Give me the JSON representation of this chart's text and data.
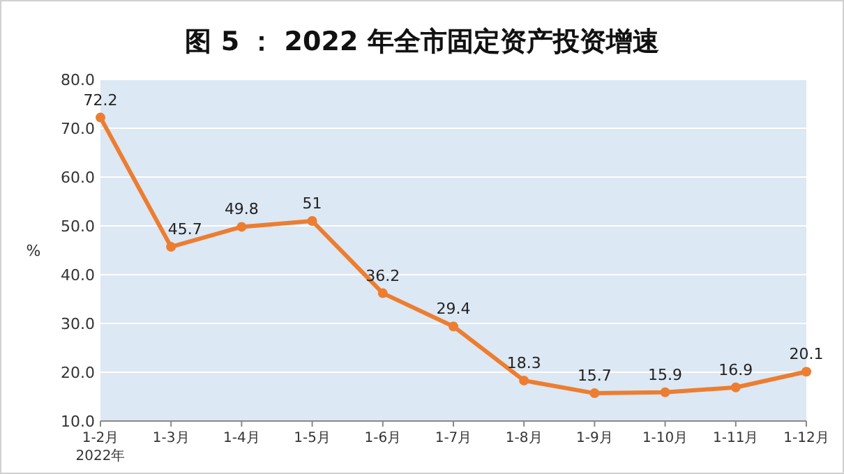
{
  "chart_data": {
    "type": "line",
    "title": "图 5 ： 2022 年全市固定资产投资增速",
    "ylabel": "%",
    "categories": [
      "1-2月",
      "1-3月",
      "1-4月",
      "1-5月",
      "1-6月",
      "1-7月",
      "1-8月",
      "1-9月",
      "1-10月",
      "1-11月",
      "1-12月"
    ],
    "annotations": [
      "2022年"
    ],
    "series": [
      {
        "color": "#ed7d31",
        "values": [
          72.2,
          45.7,
          49.8,
          51,
          36.2,
          29.4,
          18.3,
          15.7,
          15.9,
          16.9,
          20.1
        ]
      }
    ],
    "ylim": [
      10,
      80
    ],
    "yticks": [
      {
        "value": 10,
        "label": "10.0"
      },
      {
        "value": 20,
        "label": "20.0"
      },
      {
        "value": 30,
        "label": "30.0"
      },
      {
        "value": 40,
        "label": "40.0"
      },
      {
        "value": 50,
        "label": "50.0"
      },
      {
        "value": 60,
        "label": "60.0"
      },
      {
        "value": 70,
        "label": "70.0"
      },
      {
        "value": 80,
        "label": "80.0"
      }
    ],
    "grid": "y",
    "marker": "circle",
    "line_style": "solid",
    "data_labels": true
  }
}
